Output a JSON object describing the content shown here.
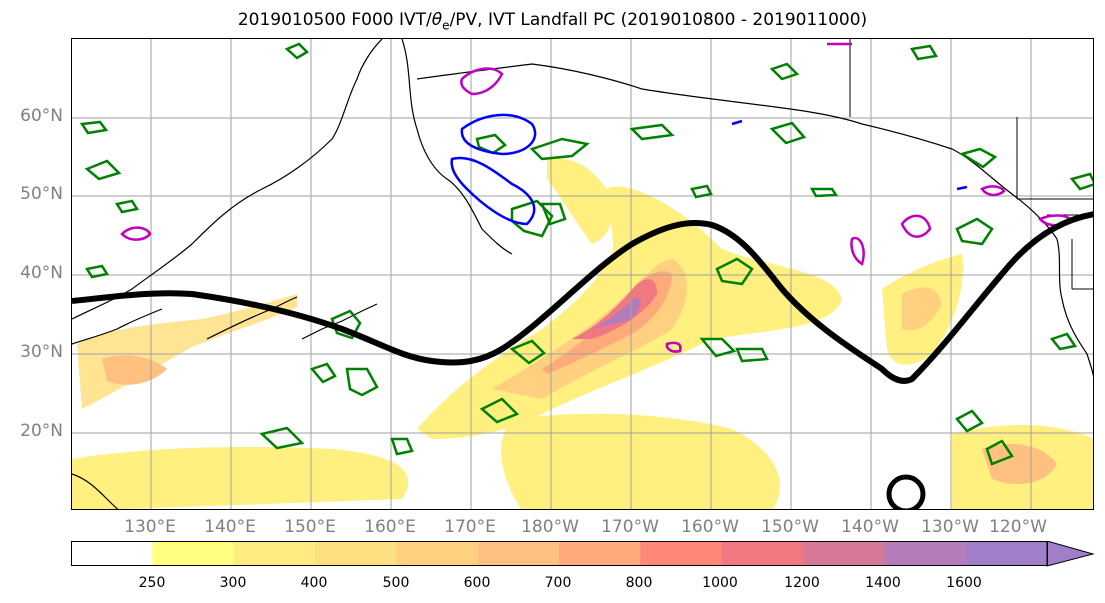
{
  "title": "2019010500 F000 IVT/θe/PV, IVT Landfall PC (2019010800 - 2019011000)",
  "title_parts": {
    "prefix": "2019010500 F000 IVT/",
    "theta": "θ",
    "sub": "e",
    "suffix": "/PV, IVT Landfall PC (2019010800 - 2019011000)"
  },
  "map": {
    "lat_labels": [
      "60°N",
      "50°N",
      "40°N",
      "30°N",
      "20°N"
    ],
    "lon_labels": [
      "130°E",
      "140°E",
      "150°E",
      "160°E",
      "170°E",
      "180°W",
      "170°W",
      "160°W",
      "150°W",
      "140°W",
      "130°W",
      "120°W"
    ],
    "colors": {
      "pv_contour": "#008000",
      "theta_e_contour_magenta": "#c000c0",
      "theta_e_contour_blue": "#0000ff",
      "jet_line": "#000000",
      "coastline": "#000000",
      "grid": "#a0a0a0"
    }
  },
  "colorbar": {
    "ticks": [
      "250",
      "300",
      "400",
      "500",
      "600",
      "700",
      "800",
      "1000",
      "1200",
      "1400",
      "1600"
    ],
    "colors": [
      "#ffffff",
      "#ffff80",
      "#ffeb80",
      "#ffe080",
      "#ffd080",
      "#ffc080",
      "#ffaa7a",
      "#ff8878",
      "#f07880",
      "#d87898",
      "#b47cba",
      "#a07ec8"
    ],
    "extend": "max"
  }
}
